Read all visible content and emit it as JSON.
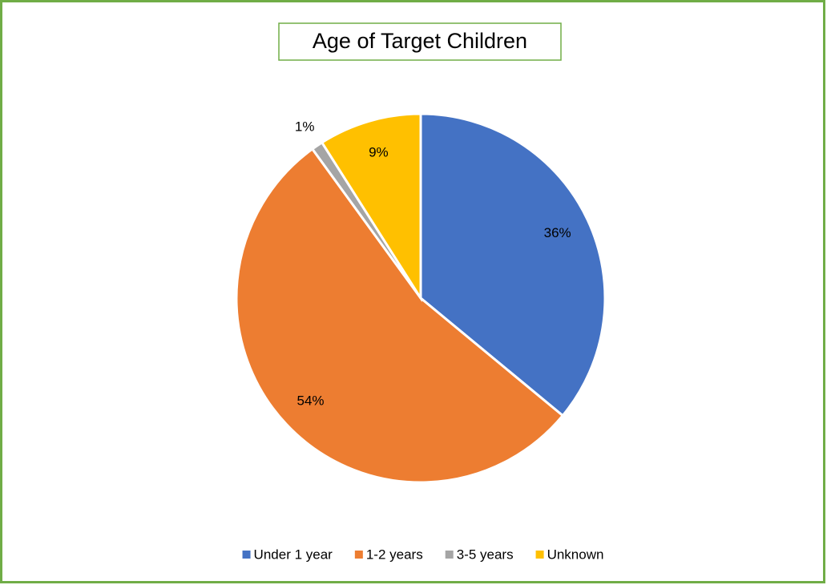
{
  "chart_data": {
    "type": "pie",
    "title": "Age of Target Children",
    "categories": [
      "Under 1 year",
      "1-2 years",
      "3-5 years",
      "Unknown"
    ],
    "values": [
      36,
      54,
      1,
      9
    ],
    "value_labels": [
      "36%",
      "54%",
      "1%",
      "9%"
    ],
    "colors": [
      "#4472c4",
      "#ed7d31",
      "#a5a5a5",
      "#ffc000"
    ],
    "legend": "bottom"
  }
}
